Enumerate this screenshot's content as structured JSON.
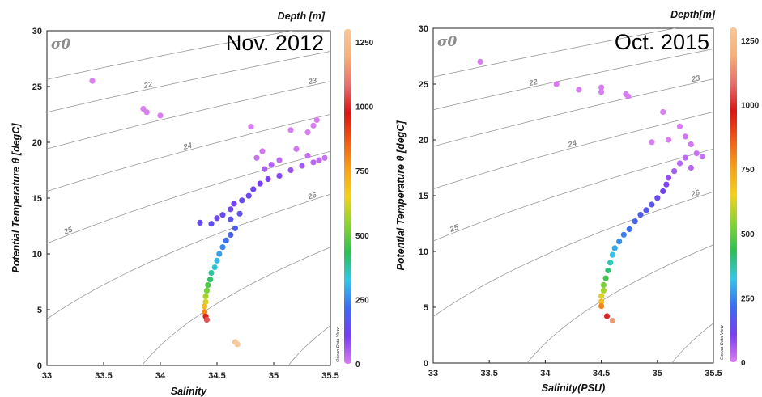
{
  "sigma_label": "σ0",
  "watermark": "Ocean Data View",
  "colors": {
    "colormap": [
      "#d97ef0",
      "#7a3ef0",
      "#3f6cf0",
      "#33c7e8",
      "#2fbf55",
      "#8ad434",
      "#f2d01e",
      "#f5a21b",
      "#ee5a17",
      "#d91515",
      "#e57070",
      "#f6b07a",
      "#f7c79a"
    ],
    "contours": "#9a9a9a",
    "axes": "#222222"
  },
  "chart_data": [
    {
      "type": "scatter",
      "title": "Nov. 2012",
      "xlabel": "Salinity",
      "ylabel": "Potential Temperature θ [degC]",
      "colorbar_label": "Depth [m]",
      "xlim": [
        33,
        35.5
      ],
      "ylim": [
        0,
        30
      ],
      "xticks": [
        "33",
        "33.5",
        "34",
        "34.5",
        "35",
        "35.5"
      ],
      "yticks": [
        "0",
        "5",
        "10",
        "15",
        "20",
        "25",
        "30"
      ],
      "colorbar_range": [
        0,
        1300
      ],
      "colorbar_ticks": [
        "0",
        "250",
        "500",
        "750",
        "1000",
        "1250"
      ],
      "contour_labels": [
        "22",
        "23",
        "24",
        "25",
        "26"
      ],
      "grid": false,
      "points": [
        {
          "x": 33.4,
          "y": 25.5,
          "depth": 0
        },
        {
          "x": 33.85,
          "y": 23.0,
          "depth": 0
        },
        {
          "x": 33.88,
          "y": 22.7,
          "depth": 0
        },
        {
          "x": 34.0,
          "y": 22.4,
          "depth": 0
        },
        {
          "x": 34.8,
          "y": 21.4,
          "depth": 0
        },
        {
          "x": 35.15,
          "y": 21.1,
          "depth": 0
        },
        {
          "x": 35.35,
          "y": 21.5,
          "depth": 0
        },
        {
          "x": 35.38,
          "y": 22.0,
          "depth": 0
        },
        {
          "x": 35.3,
          "y": 20.9,
          "depth": 0
        },
        {
          "x": 35.45,
          "y": 18.6,
          "depth": 20
        },
        {
          "x": 35.4,
          "y": 18.4,
          "depth": 30
        },
        {
          "x": 35.35,
          "y": 18.2,
          "depth": 40
        },
        {
          "x": 35.25,
          "y": 17.9,
          "depth": 60
        },
        {
          "x": 35.3,
          "y": 18.8,
          "depth": 20
        },
        {
          "x": 35.2,
          "y": 19.4,
          "depth": 10
        },
        {
          "x": 35.05,
          "y": 18.4,
          "depth": 30
        },
        {
          "x": 34.98,
          "y": 18.0,
          "depth": 40
        },
        {
          "x": 34.9,
          "y": 19.2,
          "depth": 10
        },
        {
          "x": 34.85,
          "y": 18.6,
          "depth": 20
        },
        {
          "x": 35.15,
          "y": 17.5,
          "depth": 70
        },
        {
          "x": 35.05,
          "y": 17.0,
          "depth": 90
        },
        {
          "x": 34.95,
          "y": 16.7,
          "depth": 100
        },
        {
          "x": 34.92,
          "y": 17.6,
          "depth": 50
        },
        {
          "x": 34.88,
          "y": 16.3,
          "depth": 110
        },
        {
          "x": 34.82,
          "y": 15.8,
          "depth": 120
        },
        {
          "x": 34.78,
          "y": 15.2,
          "depth": 130
        },
        {
          "x": 34.72,
          "y": 14.8,
          "depth": 140
        },
        {
          "x": 34.65,
          "y": 14.5,
          "depth": 120
        },
        {
          "x": 34.62,
          "y": 14.0,
          "depth": 130
        },
        {
          "x": 34.55,
          "y": 13.5,
          "depth": 140
        },
        {
          "x": 34.5,
          "y": 13.2,
          "depth": 130
        },
        {
          "x": 34.45,
          "y": 12.7,
          "depth": 150
        },
        {
          "x": 34.35,
          "y": 12.8,
          "depth": 140
        },
        {
          "x": 34.62,
          "y": 13.1,
          "depth": 160
        },
        {
          "x": 34.7,
          "y": 13.6,
          "depth": 150
        },
        {
          "x": 34.66,
          "y": 12.3,
          "depth": 180
        },
        {
          "x": 34.62,
          "y": 11.7,
          "depth": 200
        },
        {
          "x": 34.58,
          "y": 11.2,
          "depth": 220
        },
        {
          "x": 34.55,
          "y": 10.6,
          "depth": 250
        },
        {
          "x": 34.52,
          "y": 10.0,
          "depth": 280
        },
        {
          "x": 34.5,
          "y": 9.4,
          "depth": 310
        },
        {
          "x": 34.48,
          "y": 8.8,
          "depth": 340
        },
        {
          "x": 34.45,
          "y": 8.3,
          "depth": 380
        },
        {
          "x": 34.44,
          "y": 7.7,
          "depth": 420
        },
        {
          "x": 34.42,
          "y": 7.2,
          "depth": 470
        },
        {
          "x": 34.41,
          "y": 6.7,
          "depth": 520
        },
        {
          "x": 34.4,
          "y": 6.2,
          "depth": 570
        },
        {
          "x": 34.4,
          "y": 5.7,
          "depth": 620
        },
        {
          "x": 34.39,
          "y": 5.3,
          "depth": 700
        },
        {
          "x": 34.39,
          "y": 4.8,
          "depth": 800
        },
        {
          "x": 34.4,
          "y": 4.4,
          "depth": 950
        },
        {
          "x": 34.41,
          "y": 4.1,
          "depth": 1050
        },
        {
          "x": 34.66,
          "y": 2.1,
          "depth": 1300
        },
        {
          "x": 34.68,
          "y": 1.9,
          "depth": 1300
        }
      ]
    },
    {
      "type": "scatter",
      "title": "Oct. 2015",
      "xlabel": "Salinity(PSU)",
      "ylabel": "Potential Temperature θ [degC]",
      "colorbar_label": "Depth[m]",
      "xlim": [
        33,
        35.5
      ],
      "ylim": [
        0,
        30
      ],
      "xticks": [
        "33",
        "33.5",
        "34",
        "34.5",
        "35",
        "35.5"
      ],
      "yticks": [
        "0",
        "5",
        "10",
        "15",
        "20",
        "25",
        "30"
      ],
      "colorbar_range": [
        0,
        1300
      ],
      "colorbar_ticks": [
        "0",
        "250",
        "500",
        "750",
        "1000",
        "1250"
      ],
      "contour_labels": [
        "22",
        "23",
        "24",
        "25",
        "26"
      ],
      "grid": false,
      "points": [
        {
          "x": 33.42,
          "y": 27.0,
          "depth": 0
        },
        {
          "x": 34.1,
          "y": 25.0,
          "depth": 0
        },
        {
          "x": 34.3,
          "y": 24.5,
          "depth": 0
        },
        {
          "x": 34.5,
          "y": 24.7,
          "depth": 0
        },
        {
          "x": 34.5,
          "y": 24.3,
          "depth": 0
        },
        {
          "x": 34.72,
          "y": 24.1,
          "depth": 0
        },
        {
          "x": 34.74,
          "y": 23.9,
          "depth": 0
        },
        {
          "x": 35.05,
          "y": 22.5,
          "depth": 0
        },
        {
          "x": 35.2,
          "y": 21.2,
          "depth": 0
        },
        {
          "x": 35.1,
          "y": 20.0,
          "depth": 0
        },
        {
          "x": 34.95,
          "y": 19.8,
          "depth": 0
        },
        {
          "x": 35.25,
          "y": 20.3,
          "depth": 10
        },
        {
          "x": 35.3,
          "y": 19.6,
          "depth": 10
        },
        {
          "x": 35.35,
          "y": 18.8,
          "depth": 20
        },
        {
          "x": 35.4,
          "y": 18.5,
          "depth": 20
        },
        {
          "x": 35.25,
          "y": 18.4,
          "depth": 30
        },
        {
          "x": 35.2,
          "y": 17.9,
          "depth": 40
        },
        {
          "x": 35.3,
          "y": 17.5,
          "depth": 40
        },
        {
          "x": 35.15,
          "y": 17.2,
          "depth": 60
        },
        {
          "x": 35.1,
          "y": 16.6,
          "depth": 80
        },
        {
          "x": 35.08,
          "y": 16.0,
          "depth": 100
        },
        {
          "x": 35.05,
          "y": 15.4,
          "depth": 120
        },
        {
          "x": 35.0,
          "y": 14.8,
          "depth": 140
        },
        {
          "x": 34.95,
          "y": 14.2,
          "depth": 160
        },
        {
          "x": 34.9,
          "y": 13.7,
          "depth": 170
        },
        {
          "x": 34.85,
          "y": 13.3,
          "depth": 180
        },
        {
          "x": 34.8,
          "y": 12.7,
          "depth": 200
        },
        {
          "x": 34.75,
          "y": 12.0,
          "depth": 220
        },
        {
          "x": 34.7,
          "y": 11.5,
          "depth": 240
        },
        {
          "x": 34.66,
          "y": 10.9,
          "depth": 260
        },
        {
          "x": 34.62,
          "y": 10.3,
          "depth": 290
        },
        {
          "x": 34.6,
          "y": 9.7,
          "depth": 320
        },
        {
          "x": 34.58,
          "y": 9.0,
          "depth": 360
        },
        {
          "x": 34.56,
          "y": 8.3,
          "depth": 410
        },
        {
          "x": 34.54,
          "y": 7.6,
          "depth": 460
        },
        {
          "x": 34.52,
          "y": 7.0,
          "depth": 520
        },
        {
          "x": 34.52,
          "y": 6.5,
          "depth": 570
        },
        {
          "x": 34.5,
          "y": 6.0,
          "depth": 630
        },
        {
          "x": 34.5,
          "y": 5.5,
          "depth": 700
        },
        {
          "x": 34.5,
          "y": 5.1,
          "depth": 800
        },
        {
          "x": 34.55,
          "y": 4.2,
          "depth": 1000
        },
        {
          "x": 34.6,
          "y": 3.8,
          "depth": 1150
        }
      ]
    }
  ]
}
